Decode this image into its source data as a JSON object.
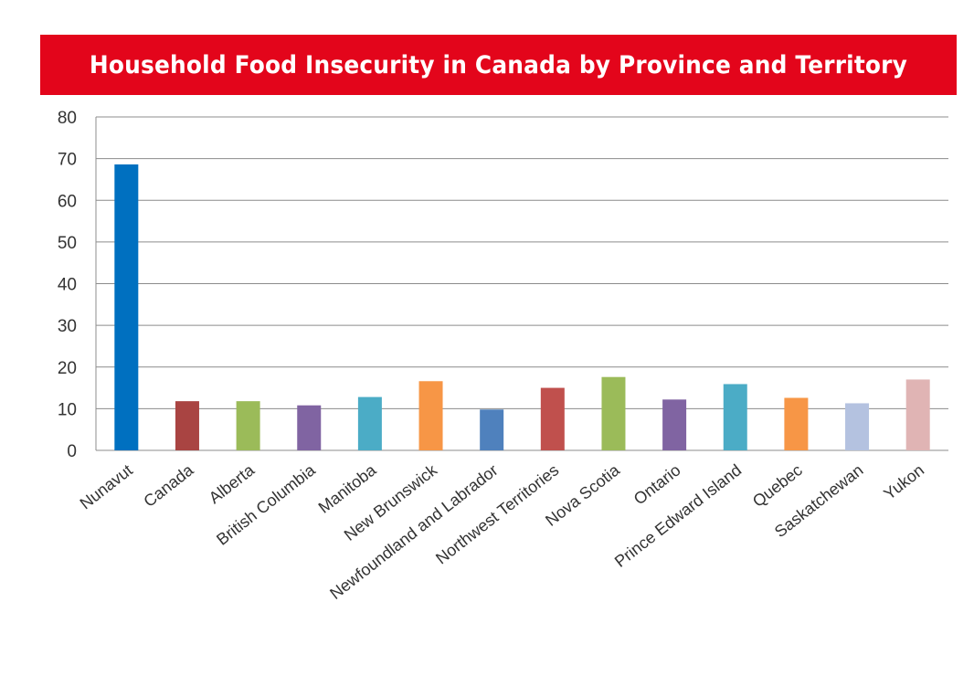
{
  "chart_data": {
    "type": "bar",
    "title": "Household Food Insecurity in Canada by Province and Territory",
    "xlabel": "",
    "ylabel": "",
    "ylim": [
      0,
      80
    ],
    "yticks": [
      0,
      10,
      20,
      30,
      40,
      50,
      60,
      70,
      80
    ],
    "grid": true,
    "categories": [
      "Nunavut",
      "Canada",
      "Alberta",
      "British Columbia",
      "Manitoba",
      "New Brunswick",
      "Newfoundland and Labrador",
      "Northwest Territories",
      "Nova Scotia",
      "Ontario",
      "Prince Edward Island",
      "Quebec",
      "Saskatchewan",
      "Yukon"
    ],
    "values": [
      68.6,
      11.8,
      11.8,
      10.8,
      12.8,
      16.6,
      9.8,
      15.0,
      17.6,
      12.2,
      15.9,
      12.6,
      11.3,
      17.0
    ],
    "colors": [
      "#0070c0",
      "#a94442",
      "#9bbb59",
      "#8064a2",
      "#4bacc6",
      "#f79646",
      "#4f81bd",
      "#c0504d",
      "#9bbb59",
      "#8064a2",
      "#4bacc6",
      "#f79646",
      "#b4c2e0",
      "#e0b4b4"
    ]
  }
}
